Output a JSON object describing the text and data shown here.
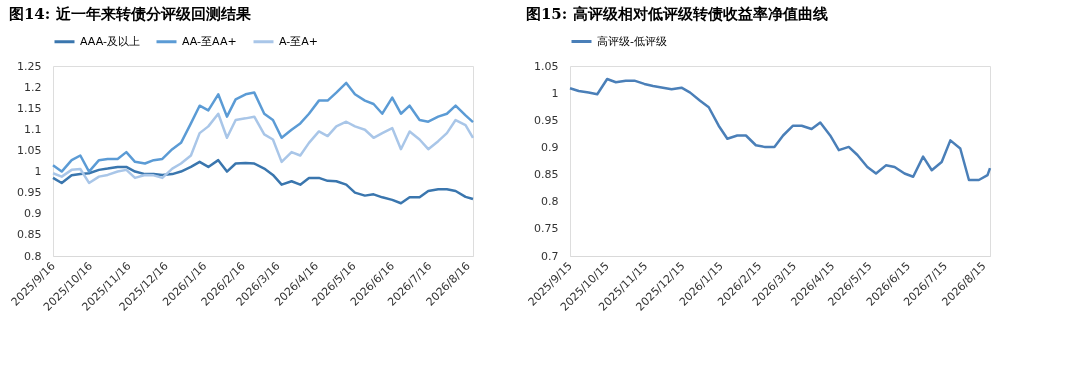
{
  "chart_data": [
    {
      "type": "line",
      "title": "图14: 近一年来转债分评级回测结果",
      "legend": "top",
      "grid": false,
      "x": [
        "2025-09-16",
        "2025-09-23",
        "2025-10-01",
        "2025-10-08",
        "2025-10-15",
        "2025-10-23",
        "2025-10-30",
        "2025-11-07",
        "2025-11-14",
        "2025-11-21",
        "2025-11-29",
        "2025-12-06",
        "2025-12-13",
        "2025-12-21",
        "2025-12-28",
        "2026-01-05",
        "2026-01-12",
        "2026-01-19",
        "2026-01-27",
        "2026-02-03",
        "2026-02-10",
        "2026-02-18",
        "2026-02-25",
        "2026-03-05",
        "2026-03-12",
        "2026-03-19",
        "2026-03-27",
        "2026-04-03",
        "2026-04-10",
        "2026-04-18",
        "2026-04-25",
        "2026-05-02",
        "2026-05-10",
        "2026-05-17",
        "2026-05-25",
        "2026-06-01",
        "2026-06-08",
        "2026-06-16",
        "2026-06-23",
        "2026-06-30",
        "2026-07-08",
        "2026-07-15",
        "2026-07-23",
        "2026-07-30",
        "2026-08-06",
        "2026-08-14",
        "2026-08-20"
      ],
      "series": [
        {
          "name": "AAA-及以上",
          "color": "#3a76ae",
          "values": [
            0.985,
            0.973,
            0.991,
            0.994,
            0.996,
            1.004,
            1.007,
            1.011,
            1.011,
            1.0,
            0.994,
            0.994,
            0.992,
            0.994,
            1.0,
            1.011,
            1.023,
            1.011,
            1.027,
            1.0,
            1.019,
            1.02,
            1.019,
            1.007,
            0.992,
            0.969,
            0.977,
            0.969,
            0.985,
            0.985,
            0.978,
            0.977,
            0.969,
            0.95,
            0.943,
            0.946,
            0.939,
            0.933,
            0.925,
            0.939,
            0.939,
            0.954,
            0.958,
            0.958,
            0.954,
            0.94,
            0.935
          ]
        },
        {
          "name": "AA-至AA+",
          "color": "#5b9bd5",
          "values": [
            1.015,
            1.0,
            1.027,
            1.038,
            1.0,
            1.027,
            1.03,
            1.03,
            1.046,
            1.023,
            1.019,
            1.027,
            1.03,
            1.053,
            1.068,
            1.114,
            1.156,
            1.145,
            1.183,
            1.13,
            1.171,
            1.183,
            1.187,
            1.137,
            1.122,
            1.08,
            1.099,
            1.114,
            1.137,
            1.168,
            1.168,
            1.187,
            1.21,
            1.183,
            1.168,
            1.16,
            1.137,
            1.175,
            1.137,
            1.156,
            1.122,
            1.118,
            1.13,
            1.137,
            1.156,
            1.133,
            1.117
          ]
        },
        {
          "name": "A-至A+",
          "color": "#a9c6e8",
          "values": [
            0.996,
            0.988,
            1.004,
            1.006,
            0.973,
            0.988,
            0.992,
            1.0,
            1.004,
            0.985,
            0.992,
            0.991,
            0.985,
            1.007,
            1.019,
            1.038,
            1.091,
            1.107,
            1.137,
            1.08,
            1.122,
            1.126,
            1.13,
            1.088,
            1.076,
            1.023,
            1.046,
            1.038,
            1.068,
            1.095,
            1.084,
            1.107,
            1.118,
            1.107,
            1.099,
            1.08,
            1.091,
            1.103,
            1.053,
            1.095,
            1.076,
            1.053,
            1.072,
            1.091,
            1.122,
            1.11,
            1.08
          ]
        }
      ],
      "xlim": [
        "2025-09-16",
        "2026-08-20"
      ],
      "xticks": [
        {
          "value": "2025-09-16",
          "label": "2025/9/16"
        },
        {
          "value": "2025-10-16",
          "label": "2025/10/16"
        },
        {
          "value": "2025-11-16",
          "label": "2025/11/16"
        },
        {
          "value": "2025-12-16",
          "label": "2025/12/16"
        },
        {
          "value": "2026-01-16",
          "label": "2026/1/16"
        },
        {
          "value": "2026-02-16",
          "label": "2026/2/16"
        },
        {
          "value": "2026-03-16",
          "label": "2026/3/16"
        },
        {
          "value": "2026-04-16",
          "label": "2026/4/16"
        },
        {
          "value": "2026-05-16",
          "label": "2026/5/16"
        },
        {
          "value": "2026-06-16",
          "label": "2026/6/16"
        },
        {
          "value": "2026-07-16",
          "label": "2026/7/16"
        },
        {
          "value": "2026-08-16",
          "label": "2026/8/16"
        }
      ],
      "ylim": [
        0.8,
        1.25
      ],
      "yticks": [
        0.8,
        0.85,
        0.9,
        0.95,
        1,
        1.05,
        1.1,
        1.15,
        1.2,
        1.25
      ]
    },
    {
      "type": "line",
      "title": "图15: 高评级相对低评级转债收益率净值曲线",
      "legend": "top",
      "grid": false,
      "x": [
        "2025-09-15",
        "2025-09-22",
        "2025-09-30",
        "2025-10-07",
        "2025-10-15",
        "2025-10-22",
        "2025-10-30",
        "2025-11-06",
        "2025-11-14",
        "2025-11-21",
        "2025-11-29",
        "2025-12-06",
        "2025-12-14",
        "2025-12-21",
        "2025-12-29",
        "2026-01-05",
        "2026-01-13",
        "2026-01-20",
        "2026-01-28",
        "2026-02-04",
        "2026-02-12",
        "2026-02-19",
        "2026-02-27",
        "2026-03-06",
        "2026-03-14",
        "2026-03-21",
        "2026-03-29",
        "2026-04-05",
        "2026-04-13",
        "2026-04-20",
        "2026-04-28",
        "2026-05-05",
        "2026-05-13",
        "2026-05-20",
        "2026-05-28",
        "2026-06-04",
        "2026-06-12",
        "2026-06-19",
        "2026-06-27",
        "2026-07-04",
        "2026-07-12",
        "2026-07-19",
        "2026-07-27",
        "2026-08-03",
        "2026-08-11",
        "2026-08-18",
        "2026-08-20"
      ],
      "series": [
        {
          "name": "高评级-低评级",
          "color": "#4a7fb8",
          "values": [
            1.009,
            1.004,
            1.001,
            0.998,
            1.026,
            1.02,
            1.023,
            1.023,
            1.017,
            1.013,
            1.01,
            1.007,
            1.01,
            1.001,
            0.986,
            0.974,
            0.94,
            0.916,
            0.922,
            0.922,
            0.904,
            0.901,
            0.901,
            0.922,
            0.94,
            0.94,
            0.934,
            0.946,
            0.922,
            0.895,
            0.901,
            0.886,
            0.864,
            0.852,
            0.867,
            0.864,
            0.852,
            0.846,
            0.883,
            0.858,
            0.873,
            0.913,
            0.898,
            0.84,
            0.84,
            0.849,
            0.862
          ]
        }
      ],
      "xlim": [
        "2025-09-15",
        "2026-08-20"
      ],
      "xticks": [
        {
          "value": "2025-09-15",
          "label": "2025/9/15"
        },
        {
          "value": "2025-10-15",
          "label": "2025/10/15"
        },
        {
          "value": "2025-11-15",
          "label": "2025/11/15"
        },
        {
          "value": "2025-12-15",
          "label": "2025/12/15"
        },
        {
          "value": "2026-01-15",
          "label": "2026/1/15"
        },
        {
          "value": "2026-02-15",
          "label": "2026/2/15"
        },
        {
          "value": "2026-03-15",
          "label": "2026/3/15"
        },
        {
          "value": "2026-04-15",
          "label": "2026/4/15"
        },
        {
          "value": "2026-05-15",
          "label": "2026/5/15"
        },
        {
          "value": "2026-06-15",
          "label": "2026/6/15"
        },
        {
          "value": "2026-07-15",
          "label": "2026/7/15"
        },
        {
          "value": "2026-08-15",
          "label": "2026/8/15"
        }
      ],
      "ylim": [
        0.7,
        1.05
      ],
      "yticks": [
        0.7,
        0.75,
        0.8,
        0.85,
        0.9,
        0.95,
        1,
        1.05
      ]
    }
  ]
}
